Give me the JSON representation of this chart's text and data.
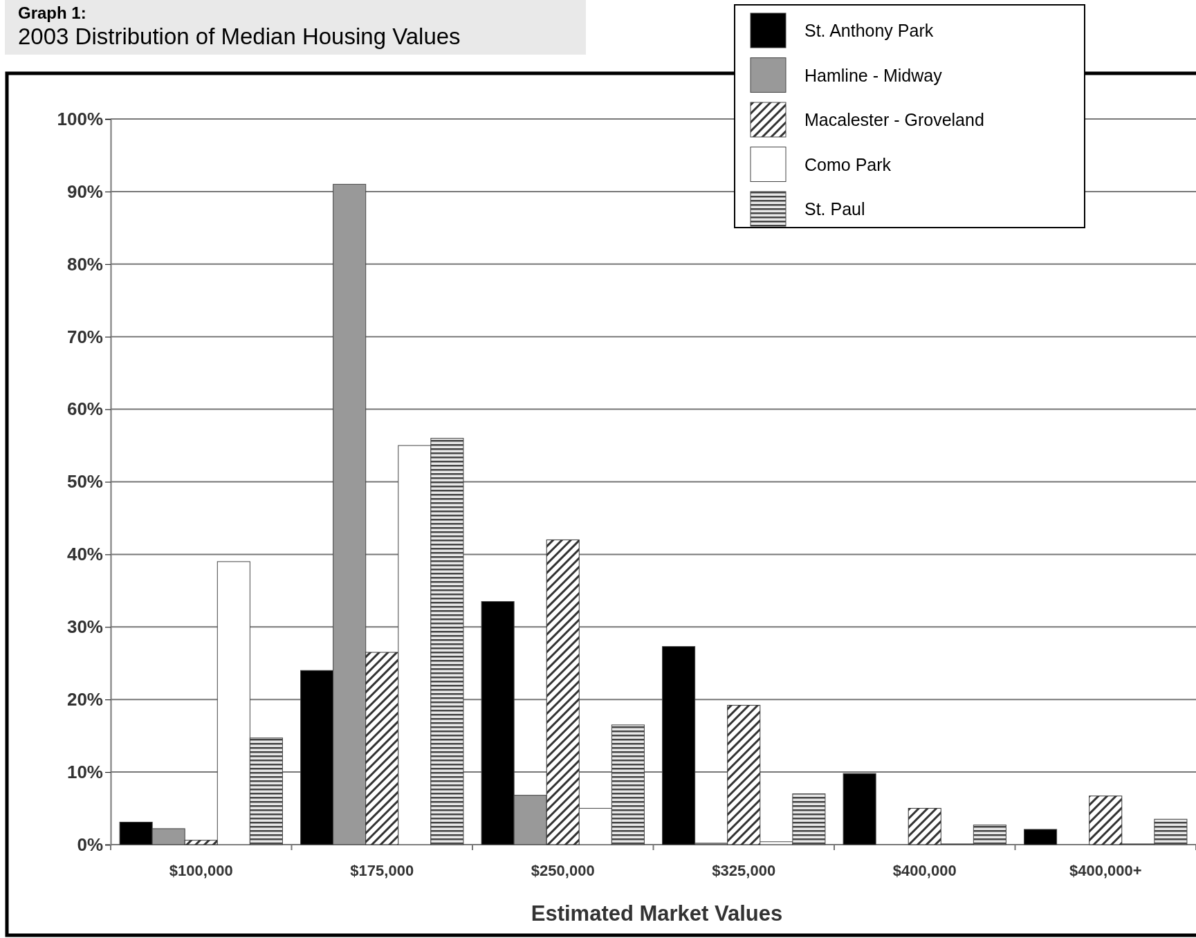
{
  "chart_data": {
    "type": "bar",
    "title": "Graph 1:",
    "subtitle": "2003 Distribution of Median Housing Values",
    "xlabel": "Estimated Market Values",
    "categories": [
      "$100,000",
      "$175,000",
      "$250,000",
      "$325,000",
      "$400,000",
      "$400,000+"
    ],
    "series": [
      {
        "name": "St. Anthony Park",
        "color": "#000000",
        "values": [
          3.1,
          24,
          33.5,
          27.3,
          9.8,
          2.1
        ]
      },
      {
        "name": "Hamline - Midway",
        "color": "#999999",
        "values": [
          2.2,
          91,
          6.8,
          0.2,
          0,
          0
        ]
      },
      {
        "name": "Macalester - Groveland",
        "color": "#333333",
        "values": [
          0.6,
          26.5,
          42,
          19.2,
          5,
          6.7
        ]
      },
      {
        "name": "Como Park",
        "color": "#ffffff",
        "values": [
          39,
          55,
          5,
          0.4,
          0.1,
          0.1
        ]
      },
      {
        "name": "St. Paul",
        "color": "#444444",
        "values": [
          14.7,
          56,
          16.5,
          7,
          2.7,
          3.5
        ]
      }
    ],
    "ylim": [
      0,
      100
    ],
    "yticks": [
      {
        "value": 0,
        "label": "0%"
      },
      {
        "value": 10,
        "label": "10%"
      },
      {
        "value": 20,
        "label": "20%"
      },
      {
        "value": 30,
        "label": "30%"
      },
      {
        "value": 40,
        "label": "40%"
      },
      {
        "value": 50,
        "label": "50%"
      },
      {
        "value": 60,
        "label": "60%"
      },
      {
        "value": 70,
        "label": "70%"
      },
      {
        "value": 80,
        "label": "80%"
      },
      {
        "value": 90,
        "label": "90%"
      },
      {
        "value": 100,
        "label": "100%"
      }
    ],
    "grid": "y",
    "legend": "top right"
  }
}
